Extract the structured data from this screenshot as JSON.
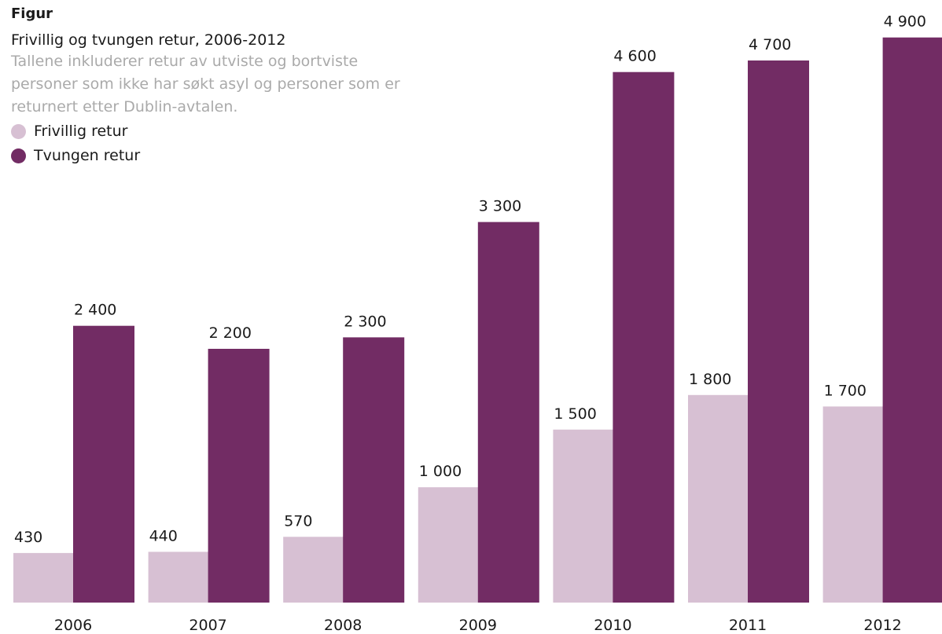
{
  "header": {
    "kicker": "Figur",
    "title": "Frivillig og tvungen retur, 2006-2012",
    "subtitle": "Tallene inkluderer retur av utviste og bortviste personer som ikke har søkt asyl og personer som er returnert etter Dublin-avtalen."
  },
  "colors": {
    "frivillig": "#d7c0d3",
    "tvungen": "#722c64"
  },
  "chart_data": {
    "type": "bar",
    "title": "Frivillig og tvungen retur, 2006-2012",
    "xlabel": "",
    "ylabel": "",
    "ylim": [
      0,
      5000
    ],
    "grid": false,
    "legend_placement": "top-left",
    "categories": [
      "2006",
      "2007",
      "2008",
      "2009",
      "2010",
      "2011",
      "2012"
    ],
    "series": [
      {
        "name": "Frivillig retur",
        "values": [
          430,
          440,
          570,
          1000,
          1500,
          1800,
          1700
        ],
        "labels": [
          "430",
          "440",
          "570",
          "1 000",
          "1 500",
          "1 800",
          "1 700"
        ]
      },
      {
        "name": "Tvungen retur",
        "values": [
          2400,
          2200,
          2300,
          3300,
          4600,
          4700,
          4900
        ],
        "labels": [
          "2 400",
          "2 200",
          "2 300",
          "3 300",
          "4 600",
          "4 700",
          "4 900"
        ]
      }
    ]
  }
}
